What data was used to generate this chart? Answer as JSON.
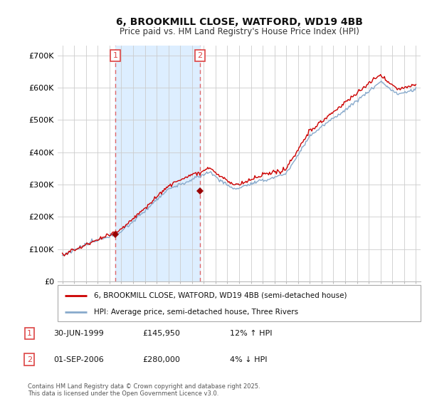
{
  "title": "6, BROOKMILL CLOSE, WATFORD, WD19 4BB",
  "subtitle": "Price paid vs. HM Land Registry's House Price Index (HPI)",
  "ylabel_ticks": [
    "£0",
    "£100K",
    "£200K",
    "£300K",
    "£400K",
    "£500K",
    "£600K",
    "£700K"
  ],
  "ytick_values": [
    0,
    100000,
    200000,
    300000,
    400000,
    500000,
    600000,
    700000
  ],
  "ylim": [
    0,
    730000
  ],
  "xlim_start": 1994.6,
  "xlim_end": 2025.4,
  "line_color_red": "#cc0000",
  "line_color_blue": "#88aacc",
  "marker1_year": 1999.5,
  "marker2_year": 2006.67,
  "marker1_price": 145950,
  "marker2_price": 280000,
  "legend_line1": "6, BROOKMILL CLOSE, WATFORD, WD19 4BB (semi-detached house)",
  "legend_line2": "HPI: Average price, semi-detached house, Three Rivers",
  "table_row1": [
    "1",
    "30-JUN-1999",
    "£145,950",
    "12% ↑ HPI"
  ],
  "table_row2": [
    "2",
    "01-SEP-2006",
    "£280,000",
    "4% ↓ HPI"
  ],
  "footnote": "Contains HM Land Registry data © Crown copyright and database right 2025.\nThis data is licensed under the Open Government Licence v3.0.",
  "grid_color": "#cccccc",
  "background_color": "#ffffff",
  "vline_color": "#dd4444",
  "shade_color": "#ddeeff",
  "marker_color": "#990000"
}
